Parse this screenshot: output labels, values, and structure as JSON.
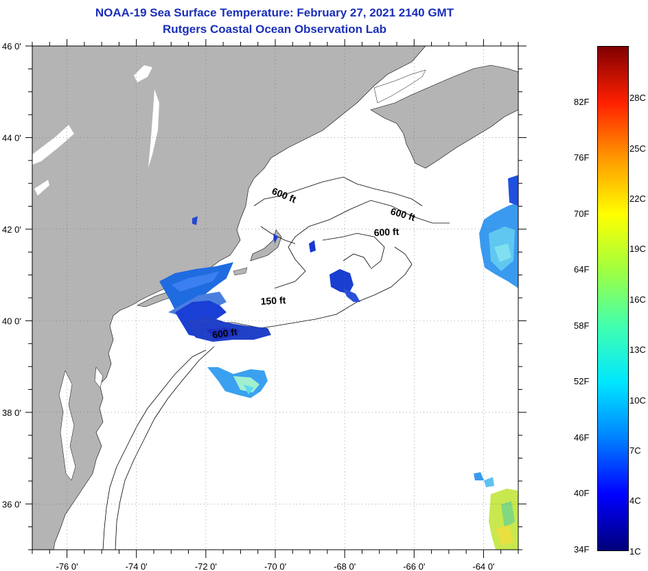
{
  "header": {
    "title": "NOAA-19 Sea Surface Temperature:  February 27, 2021 2140 GMT",
    "subtitle": "Rutgers Coastal Ocean Observation Lab"
  },
  "map": {
    "lon_range": [
      -77,
      -63
    ],
    "lat_range": [
      35,
      46
    ],
    "lon_ticks": [
      {
        "value": -76,
        "label": "-76 0'"
      },
      {
        "value": -74,
        "label": "-74 0'"
      },
      {
        "value": -72,
        "label": "-72 0'"
      },
      {
        "value": -70,
        "label": "-70 0'"
      },
      {
        "value": -68,
        "label": "-68 0'"
      },
      {
        "value": -66,
        "label": "-66 0'"
      },
      {
        "value": -64,
        "label": "-64 0'"
      }
    ],
    "lat_ticks": [
      {
        "value": 46,
        "label": "46 0'"
      },
      {
        "value": 44,
        "label": "44 0'"
      },
      {
        "value": 42,
        "label": "42 0'"
      },
      {
        "value": 40,
        "label": "40 0'"
      },
      {
        "value": 38,
        "label": "38 0'"
      },
      {
        "value": 36,
        "label": "36 0'"
      }
    ],
    "depth_labels": [
      {
        "text": "600 ft"
      },
      {
        "text": "600 ft"
      },
      {
        "text": "600 ft"
      },
      {
        "text": "150 ft"
      },
      {
        "text": "600 ft"
      }
    ],
    "colors": {
      "land": "#b4b4b4",
      "water": "#ffffff",
      "title": "#1a2fb8"
    }
  },
  "colorbar": {
    "min_f": 34,
    "max_f": 88,
    "fahrenheit_labels": [
      "82F",
      "76F",
      "70F",
      "64F",
      "58F",
      "52F",
      "46F",
      "40F",
      "34F"
    ],
    "celsius_labels": [
      "28C",
      "25C",
      "22C",
      "19C",
      "16C",
      "13C",
      "10C",
      "7C",
      "4C",
      "1C"
    ],
    "colors": [
      "#00007a",
      "#0000ff",
      "#0080ff",
      "#00e6ff",
      "#40ffb0",
      "#a0ff40",
      "#ffff00",
      "#ff9900",
      "#ff2000",
      "#800000"
    ]
  }
}
